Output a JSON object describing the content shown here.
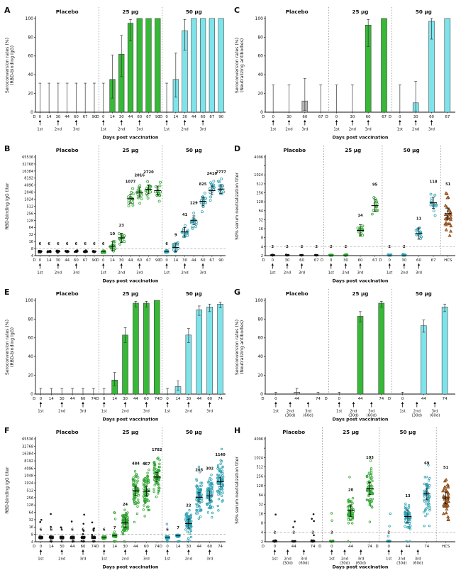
{
  "figure": {
    "background": "#ffffff",
    "colors": {
      "placebo_bar": "#b4b4b4",
      "green_bar": "#37b837",
      "cyan_bar": "#7fe3ea",
      "placebo_pt": "#151515",
      "green_pt": "#2da32d",
      "cyan_pt": "#2b9fb0",
      "hcs": "#7a3c10",
      "hcs_fill": "#c07a3a"
    }
  },
  "chart_data": [
    {
      "id": "A",
      "type": "bar",
      "ylabel": [
        "Seroconversion rates (%)",
        "(RBD-binding IgG)"
      ],
      "ymax": 100,
      "yticks": [
        0,
        20,
        40,
        60,
        80,
        100
      ],
      "day_prefix": "D",
      "xlabel": "Days post vaccination",
      "arrows": [
        {
          "i": 0,
          "label": "1st"
        },
        {
          "i": 2,
          "label": "2nd"
        },
        {
          "i": 4,
          "label": "3rd"
        }
      ],
      "groups": [
        {
          "header": "Placebo",
          "color": "placebo",
          "days": [
            0,
            14,
            30,
            44,
            60,
            67,
            90
          ],
          "values": [
            0,
            0,
            0,
            0,
            0,
            0,
            0
          ],
          "lo": [
            0,
            0,
            0,
            0,
            0,
            0,
            0
          ],
          "hi": [
            31,
            31,
            31,
            31,
            31,
            31,
            31
          ]
        },
        {
          "header": "25 µg",
          "color": "green",
          "days": [
            0,
            14,
            30,
            44,
            60,
            67,
            90
          ],
          "values": [
            0,
            35,
            62,
            95,
            100,
            100,
            100
          ],
          "lo": [
            0,
            15,
            38,
            76,
            84,
            84,
            84
          ],
          "hi": [
            31,
            61,
            82,
            99,
            100,
            100,
            100
          ]
        },
        {
          "header": "50 µg",
          "color": "cyan",
          "days": [
            0,
            14,
            30,
            44,
            60,
            67,
            90
          ],
          "values": [
            0,
            35,
            87,
            100,
            100,
            100,
            100
          ],
          "lo": [
            0,
            16,
            66,
            84,
            84,
            84,
            84
          ],
          "hi": [
            31,
            63,
            99,
            100,
            100,
            100,
            100
          ]
        }
      ]
    },
    {
      "id": "C",
      "type": "bar",
      "ylabel": [
        "Seroconversion rates (%)",
        "(Neutralizing antibodies)"
      ],
      "ymax": 100,
      "yticks": [
        0,
        20,
        40,
        60,
        80,
        100
      ],
      "day_prefix": "D",
      "xlabel": "Days post vaccination",
      "arrows": [
        {
          "i": 0,
          "label": "1st"
        },
        {
          "i": 1,
          "label": "2nd"
        },
        {
          "i": 2,
          "label": "3rd"
        }
      ],
      "groups": [
        {
          "header": "Placebo",
          "color": "placebo",
          "days": [
            0,
            30,
            60,
            67
          ],
          "values": [
            0,
            0,
            12,
            0
          ],
          "lo": [
            0,
            0,
            2,
            0
          ],
          "hi": [
            29,
            29,
            36,
            29
          ]
        },
        {
          "header": "25 µg",
          "color": "green",
          "days": [
            0,
            30,
            60,
            67
          ],
          "values": [
            0,
            0,
            93,
            100
          ],
          "lo": [
            0,
            0,
            70,
            80
          ],
          "hi": [
            29,
            29,
            99,
            100
          ]
        },
        {
          "header": "50 µg",
          "color": "cyan",
          "days": [
            0,
            30,
            60,
            67
          ],
          "values": [
            0,
            10,
            97,
            100
          ],
          "lo": [
            0,
            1,
            78,
            82
          ],
          "hi": [
            29,
            33,
            100,
            100
          ]
        }
      ]
    },
    {
      "id": "B",
      "type": "scatter",
      "ylabel": [
        "RBD-binding IgG titer"
      ],
      "ymin": 4,
      "ymax": 65536,
      "yticks": [
        65536,
        32768,
        16384,
        8192,
        4096,
        2048,
        1024,
        512,
        256,
        128,
        64,
        32,
        16,
        8,
        4
      ],
      "threshold": 8,
      "spread_scale": 1,
      "day_prefix": "D",
      "xlabel": "Days post vaccination",
      "arrows": [
        {
          "i": 0,
          "label": "1st"
        },
        {
          "i": 2,
          "label": "2nd"
        },
        {
          "i": 4,
          "label": "3rd"
        }
      ],
      "groups": [
        {
          "header": "Placebo",
          "color": "placebo_pt",
          "marker": "filled",
          "n": 8,
          "days": [
            0,
            14,
            30,
            44,
            60,
            67,
            90
          ],
          "gmt": [
            6,
            6,
            6,
            6,
            6,
            6,
            6
          ],
          "labels": [
            "6",
            "6",
            "6",
            "6",
            "6",
            "6",
            "6"
          ]
        },
        {
          "header": "25 µg",
          "color": "green_pt",
          "marker": "open",
          "n": 14,
          "days": [
            0,
            14,
            30,
            44,
            60,
            67,
            90
          ],
          "gmt": [
            6,
            10,
            23,
            1077,
            2016,
            2720,
            2400
          ],
          "labels": [
            "6",
            "10",
            "23",
            "1077",
            "2016",
            "2720",
            ""
          ]
        },
        {
          "header": "50 µg",
          "color": "cyan_pt",
          "marker": "open",
          "n": 14,
          "days": [
            0,
            14,
            30,
            44,
            60,
            67,
            90
          ],
          "gmt": [
            6,
            9,
            41,
            129,
            825,
            2410,
            2777
          ],
          "labels": [
            "6",
            "9",
            "41",
            "129",
            "825",
            "2410",
            "2777"
          ]
        }
      ]
    },
    {
      "id": "D",
      "type": "scatter",
      "ylabel": [
        "50% serum neutralization titer"
      ],
      "ymin": 2,
      "ymax": 4096,
      "yticks": [
        {
          "v": 4096,
          "label": "4096"
        },
        {
          "v": 2048,
          "label": ""
        },
        1024,
        512,
        256,
        128,
        64,
        32,
        16,
        8,
        4,
        2
      ],
      "threshold": 4,
      "spread_scale": 1,
      "day_prefix": "D",
      "xlabel": "Days post vaccination",
      "arrows": [
        {
          "i": 0,
          "label": "1st"
        },
        {
          "i": 1,
          "label": "2nd"
        },
        {
          "i": 2,
          "label": "3rd"
        }
      ],
      "groups": [
        {
          "header": "Placebo",
          "color": "placebo_pt",
          "marker": "filled",
          "n": 8,
          "days": [
            0,
            30,
            60,
            67
          ],
          "gmt": [
            2,
            2,
            2,
            2
          ],
          "labels": [
            "2",
            "2",
            "2",
            "2"
          ]
        },
        {
          "header": "25 µg",
          "color": "green_pt",
          "marker": "open",
          "n": 14,
          "days": [
            0,
            30,
            60,
            67
          ],
          "gmt": [
            2,
            2,
            14,
            95
          ],
          "labels": [
            "2",
            "2",
            "14",
            "95"
          ]
        },
        {
          "header": "50 µg",
          "color": "cyan_pt",
          "marker": "open",
          "n": 14,
          "days": [
            0,
            30,
            60,
            67
          ],
          "gmt": [
            2,
            2,
            11,
            118
          ],
          "labels": [
            "2",
            "2",
            "11",
            "118"
          ]
        },
        {
          "header": "",
          "color": "hcs",
          "marker": "triangle",
          "n": 30,
          "days": [
            "HCS"
          ],
          "gmt": [
            51
          ],
          "labels": [
            "51"
          ],
          "spread": 1.5,
          "no_arrows": true,
          "no_prefix": true
        }
      ]
    },
    {
      "id": "E",
      "type": "bar",
      "ylabel": [
        "Seroconversion rates (%)",
        "(RBD-binding IgG)"
      ],
      "ymax": 100,
      "yticks": [
        0,
        20,
        40,
        60,
        80,
        100
      ],
      "day_prefix": "D",
      "xlabel": "Days post vaccination",
      "arrows": [
        {
          "i": 0,
          "label": "1st"
        },
        {
          "i": 2,
          "label": "2nd"
        },
        {
          "i": 4,
          "label": "3rd"
        }
      ],
      "groups": [
        {
          "header": "Placebo",
          "color": "placebo",
          "days": [
            0,
            14,
            30,
            44,
            60,
            74
          ],
          "values": [
            0,
            0,
            0,
            0,
            0,
            0
          ],
          "lo": [
            0,
            0,
            0,
            0,
            0,
            0
          ],
          "hi": [
            6,
            6,
            6,
            6,
            6,
            6
          ]
        },
        {
          "header": "25 µg",
          "color": "green",
          "days": [
            0,
            14,
            30,
            44,
            60,
            74
          ],
          "values": [
            0,
            15,
            63,
            97,
            97,
            100
          ],
          "lo": [
            0,
            9,
            55,
            93,
            93,
            97
          ],
          "hi": [
            6,
            23,
            71,
            99,
            99,
            100
          ]
        },
        {
          "header": "50 µg",
          "color": "cyan",
          "days": [
            0,
            14,
            30,
            44,
            60,
            74
          ],
          "values": [
            0,
            8,
            63,
            90,
            93,
            96
          ],
          "lo": [
            0,
            4,
            55,
            84,
            88,
            92
          ],
          "hi": [
            6,
            14,
            70,
            94,
            96,
            98
          ]
        }
      ]
    },
    {
      "id": "G",
      "type": "bar",
      "ylabel": [
        "Seroconversion rates (%)",
        "(Neutralizing antibodies)"
      ],
      "ymax": 100,
      "yticks": [
        0,
        20,
        40,
        60,
        80,
        100
      ],
      "day_prefix": "D",
      "xlabel": "Days post vaccination",
      "arrows": [
        {
          "i": 0,
          "label": "1st"
        },
        {
          "i": 0.68,
          "label": "2nd",
          "sub": "(30d)"
        },
        {
          "i": 1.53,
          "label": "3rd",
          "sub": "(60d)"
        }
      ],
      "groups": [
        {
          "header": "Placebo",
          "color": "placebo",
          "days": [
            0,
            44,
            74
          ],
          "values": [
            0,
            2,
            0
          ],
          "lo": [
            0,
            0,
            0
          ],
          "hi": [
            2,
            6,
            2
          ]
        },
        {
          "header": "25 µg",
          "color": "green",
          "days": [
            0,
            44,
            74
          ],
          "values": [
            0,
            83,
            97
          ],
          "lo": [
            0,
            77,
            93
          ],
          "hi": [
            2,
            88,
            99
          ]
        },
        {
          "header": "50 µg",
          "color": "cyan",
          "days": [
            0,
            44,
            74
          ],
          "values": [
            0,
            73,
            93
          ],
          "lo": [
            0,
            66,
            88
          ],
          "hi": [
            2,
            79,
            96
          ]
        }
      ]
    },
    {
      "id": "F",
      "type": "scatter",
      "ylabel": [
        "RBD-binding IgG titer"
      ],
      "ymin": 4,
      "ymax": 65536,
      "yticks": [
        65536,
        32768,
        16384,
        8192,
        4096,
        2048,
        1024,
        512,
        256,
        128,
        64,
        32,
        16,
        8,
        4
      ],
      "threshold": 8,
      "spread_scale": 1.8,
      "day_prefix": "D",
      "xlabel": "Days post vaccination",
      "arrows": [
        {
          "i": 0,
          "label": "1st"
        },
        {
          "i": 2,
          "label": "2nd"
        },
        {
          "i": 4,
          "label": "3rd"
        }
      ],
      "groups": [
        {
          "header": "Placebo",
          "color": "placebo_pt",
          "marker": "filled",
          "n": 70,
          "outliers": true,
          "days": [
            0,
            14,
            30,
            44,
            60,
            74
          ],
          "gmt": [
            6,
            6,
            6,
            6,
            6,
            6
          ],
          "labels": [
            "6",
            "6",
            "6",
            "6",
            "6",
            "6"
          ]
        },
        {
          "header": "25 µg",
          "color": "green_pt",
          "marker": "open",
          "n": 70,
          "outliers": true,
          "days": [
            0,
            14,
            30,
            44,
            60,
            74
          ],
          "gmt": [
            6,
            7,
            24,
            484,
            467,
            1782
          ],
          "labels": [
            "6",
            "7",
            "24",
            "484",
            "467",
            "1782"
          ]
        },
        {
          "header": "50 µg",
          "color": "cyan_pt",
          "marker": "open",
          "n": 70,
          "outliers": true,
          "days": [
            0,
            14,
            30,
            44,
            60,
            74
          ],
          "gmt": [
            6,
            7,
            22,
            265,
            302,
            1140
          ],
          "labels": [
            "6",
            "7",
            "22",
            "265",
            "302",
            "1140"
          ]
        }
      ]
    },
    {
      "id": "H",
      "type": "scatter",
      "ylabel": [
        "50% serum neutralization titer"
      ],
      "ymin": 2,
      "ymax": 4096,
      "yticks": [
        {
          "v": 4096,
          "label": "4096"
        },
        {
          "v": 2048,
          "label": ""
        },
        1024,
        512,
        256,
        128,
        64,
        32,
        16,
        8,
        4,
        2
      ],
      "threshold": 4,
      "spread_scale": 1.6,
      "day_prefix": "D",
      "xlabel": "Days post vaccination",
      "arrows": [
        {
          "i": 0,
          "label": "1st"
        },
        {
          "i": 0.68,
          "label": "2nd",
          "sub": "(30d)"
        },
        {
          "i": 1.53,
          "label": "3rd",
          "sub": "(60d)"
        }
      ],
      "groups": [
        {
          "header": "Placebo",
          "color": "placebo_pt",
          "marker": "filled",
          "n": 60,
          "outliers": true,
          "days": [
            0,
            44,
            74
          ],
          "gmt": [
            2,
            2,
            2
          ],
          "labels": [
            "2",
            "2",
            "2"
          ]
        },
        {
          "header": "25 µg",
          "color": "green_pt",
          "marker": "open",
          "n": 60,
          "outliers": true,
          "days": [
            0,
            44,
            74
          ],
          "gmt": [
            2,
            20,
            103
          ],
          "labels": [
            "2",
            "20",
            "103"
          ]
        },
        {
          "header": "50 µg",
          "color": "cyan_pt",
          "marker": "open",
          "n": 60,
          "outliers": true,
          "days": [
            0,
            44,
            74
          ],
          "gmt": [
            2,
            13,
            69
          ],
          "labels": [
            "2",
            "13",
            "69"
          ]
        },
        {
          "header": "",
          "color": "hcs",
          "marker": "triangle",
          "n": 40,
          "days": [
            "HCS"
          ],
          "gmt": [
            51
          ],
          "labels": [
            "51"
          ],
          "spread": 1.5,
          "no_arrows": true,
          "no_prefix": true
        }
      ]
    }
  ]
}
